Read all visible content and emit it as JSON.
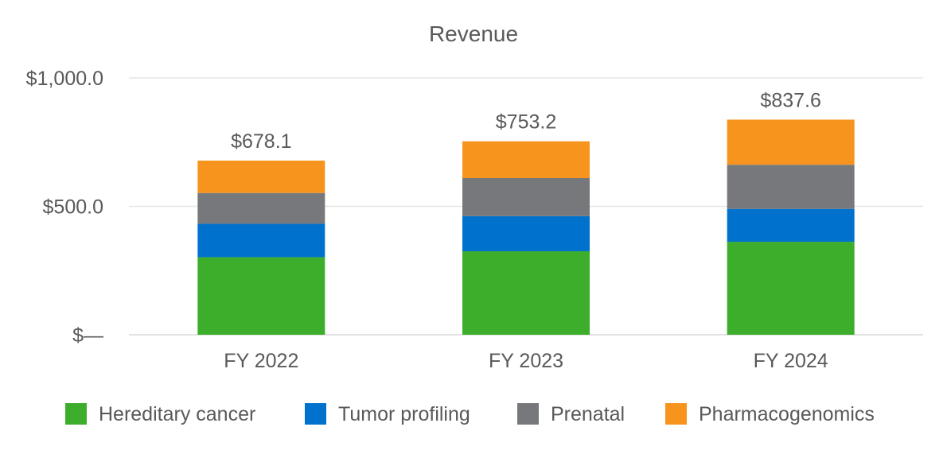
{
  "chart_data": {
    "type": "bar",
    "stacked": true,
    "title": "Revenue",
    "xlabel": "",
    "ylabel": "",
    "categories": [
      "FY 2022",
      "FY 2023",
      "FY 2024"
    ],
    "ylim": [
      0,
      1000
    ],
    "yticks": [
      0,
      500,
      1000
    ],
    "ytick_labels": [
      "$—",
      "$500.0",
      "$1,000.0"
    ],
    "grid": true,
    "legend_position": "bottom",
    "series": [
      {
        "name": "Hereditary cancer",
        "color": "#3dae2b",
        "values": [
          302,
          325,
          362
        ]
      },
      {
        "name": "Tumor profiling",
        "color": "#0072ce",
        "values": [
          130,
          137,
          128
        ]
      },
      {
        "name": "Prenatal",
        "color": "#77787b",
        "values": [
          120,
          148,
          172
        ]
      },
      {
        "name": "Pharmacogenomics",
        "color": "#f7941d",
        "values": [
          126.1,
          143.2,
          175.6
        ]
      }
    ],
    "totals": [
      678.1,
      753.2,
      837.6
    ],
    "total_labels": [
      "$678.1",
      "$753.2",
      "$837.6"
    ]
  }
}
